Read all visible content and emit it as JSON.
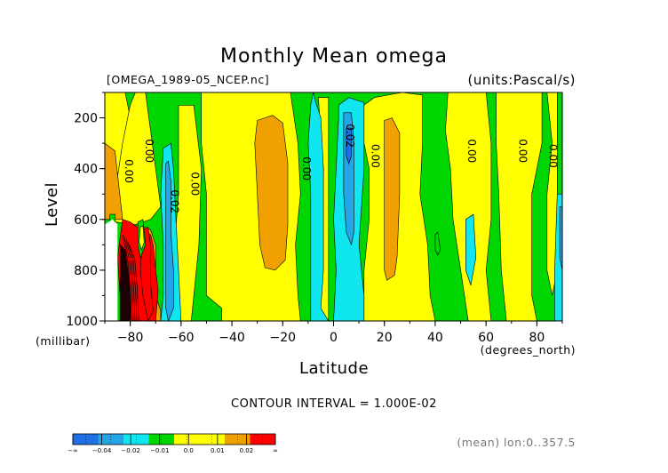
{
  "colors": {
    "band_neg04": "#1f6fe6",
    "band_neg03": "#25a5e6",
    "band_neg02": "#0fe6f0",
    "band_neg01": "#00d600",
    "band_00": "#ffff00",
    "band_01": "#ffff00",
    "band_02": "#f0a000",
    "band_03": "#ff0000",
    "dark_core": "#1a0000"
  },
  "chart_data": {
    "type": "heatmap",
    "title": "Monthly Mean omega",
    "file_label": "[OMEGA_1989-05_NCEP.nc]",
    "units_label": "(units:Pascal/s)",
    "xlabel": "Latitude",
    "x_units_label": "(degrees_north)",
    "ylabel": "Level",
    "y_units_label": "(millibar)",
    "xlim": [
      -90,
      90
    ],
    "ylim": [
      1000,
      100
    ],
    "x_ticks": [
      {
        "value": -80,
        "label": "-80"
      },
      {
        "value": -60,
        "label": "-60"
      },
      {
        "value": -40,
        "label": "-40"
      },
      {
        "value": -20,
        "label": "-20"
      },
      {
        "value": 0,
        "label": "0"
      },
      {
        "value": 20,
        "label": "20"
      },
      {
        "value": 40,
        "label": "40"
      },
      {
        "value": 60,
        "label": "60"
      },
      {
        "value": 80,
        "label": "80"
      }
    ],
    "y_ticks": [
      {
        "value": 200,
        "label": "200"
      },
      {
        "value": 400,
        "label": "400"
      },
      {
        "value": 600,
        "label": "600"
      },
      {
        "value": 800,
        "label": "800"
      },
      {
        "value": 1000,
        "label": "1000"
      }
    ],
    "contour_interval_text": "CONTOUR INTERVAL = 1.000E-02",
    "subtitle_right": "(mean) lon:0..357.5",
    "legend": {
      "labels": [
        "-∞",
        "-0.04",
        "-0.02",
        "-0.01",
        "0.0",
        "0.01",
        "0.02",
        "∞"
      ],
      "band_colors": [
        "#1f6fe6",
        "#25a5e6",
        "#0fe6f0",
        "#00d600",
        "#ffff00",
        "#ffff00",
        "#f0a000",
        "#ff0000"
      ]
    },
    "contour_labels": [
      {
        "text": "0.00",
        "lat": -82,
        "lev": 410
      },
      {
        "text": "0.00",
        "lat": -74,
        "lev": 330
      },
      {
        "text": "0.02",
        "lat": -64,
        "lev": 530
      },
      {
        "text": "0.00",
        "lat": -56,
        "lev": 460
      },
      {
        "text": "0.00",
        "lat": -12,
        "lev": 400
      },
      {
        "text": "0.02",
        "lat": 5,
        "lev": 270
      },
      {
        "text": "0.00",
        "lat": 15,
        "lev": 350
      },
      {
        "text": "0.00",
        "lat": 53,
        "lev": 330
      },
      {
        "text": "0.00",
        "lat": 73,
        "lev": 330
      },
      {
        "text": "0.00",
        "lat": 85,
        "lev": 350
      }
    ],
    "regions": [
      {
        "level": "band_neg01",
        "pts": [
          [
            -90,
            100
          ],
          [
            90,
            100
          ],
          [
            90,
            1000
          ],
          [
            -90,
            1000
          ]
        ]
      },
      {
        "level": "band_00",
        "pts": [
          [
            -90,
            100
          ],
          [
            -82,
            100
          ],
          [
            -80,
            200
          ],
          [
            -81,
            300
          ],
          [
            -82,
            500
          ],
          [
            -83,
            600
          ],
          [
            -90,
            600
          ]
        ]
      },
      {
        "level": "band_00",
        "pts": [
          [
            -78,
            100
          ],
          [
            -74,
            100
          ],
          [
            -72,
            250
          ],
          [
            -70,
            400
          ],
          [
            -68,
            550
          ],
          [
            -72,
            600
          ],
          [
            -78,
            620
          ],
          [
            -86,
            610
          ],
          [
            -86,
            500
          ],
          [
            -83,
            300
          ],
          [
            -80,
            150
          ]
        ]
      },
      {
        "level": "band_00",
        "pts": [
          [
            -61,
            150
          ],
          [
            -55,
            150
          ],
          [
            -52,
            400
          ],
          [
            -53,
            700
          ],
          [
            -56,
            1000
          ],
          [
            -63,
            1000
          ],
          [
            -63,
            750
          ],
          [
            -61,
            500
          ],
          [
            -61,
            300
          ]
        ]
      },
      {
        "level": "band_00",
        "pts": [
          [
            -52,
            100
          ],
          [
            -17,
            100
          ],
          [
            -14,
            300
          ],
          [
            -13,
            500
          ],
          [
            -15,
            700
          ],
          [
            -14,
            900
          ],
          [
            -13,
            1000
          ],
          [
            -44,
            1000
          ],
          [
            -44,
            950
          ],
          [
            -50,
            900
          ],
          [
            -50,
            800
          ],
          [
            -50,
            500
          ],
          [
            -52,
            300
          ]
        ]
      },
      {
        "level": "band_00",
        "pts": [
          [
            -6,
            120
          ],
          [
            -2,
            120
          ],
          [
            -2,
            400
          ],
          [
            -2,
            700
          ],
          [
            -2,
            1000
          ],
          [
            -5,
            1000
          ],
          [
            -5,
            700
          ],
          [
            -4,
            400
          ]
        ]
      },
      {
        "level": "band_00",
        "pts": [
          [
            12,
            150
          ],
          [
            16,
            120
          ],
          [
            27,
            100
          ],
          [
            35,
            110
          ],
          [
            35,
            300
          ],
          [
            34,
            500
          ],
          [
            37,
            700
          ],
          [
            38,
            900
          ],
          [
            40,
            1000
          ],
          [
            12,
            1000
          ],
          [
            12,
            800
          ],
          [
            14,
            600
          ],
          [
            14,
            400
          ],
          [
            12,
            300
          ]
        ]
      },
      {
        "level": "band_00",
        "pts": [
          [
            45,
            100
          ],
          [
            60,
            100
          ],
          [
            62,
            300
          ],
          [
            62,
            600
          ],
          [
            60,
            800
          ],
          [
            62,
            1000
          ],
          [
            53,
            1000
          ],
          [
            50,
            800
          ],
          [
            47,
            600
          ],
          [
            46,
            400
          ],
          [
            44,
            250
          ]
        ]
      },
      {
        "level": "band_00",
        "pts": [
          [
            64,
            100
          ],
          [
            82,
            100
          ],
          [
            82,
            300
          ],
          [
            78,
            500
          ],
          [
            78,
            700
          ],
          [
            78,
            900
          ],
          [
            80,
            1000
          ],
          [
            68,
            1000
          ],
          [
            66,
            800
          ],
          [
            65,
            500
          ],
          [
            64,
            300
          ]
        ]
      },
      {
        "level": "band_00",
        "pts": [
          [
            84,
            100
          ],
          [
            88,
            100
          ],
          [
            88,
            500
          ],
          [
            88,
            800
          ],
          [
            86,
            900
          ],
          [
            84,
            800
          ],
          [
            84,
            500
          ],
          [
            86,
            300
          ]
        ]
      },
      {
        "level": "band_02",
        "pts": [
          [
            -90,
            300
          ],
          [
            -86,
            330
          ],
          [
            -83,
            600
          ],
          [
            -90,
            600
          ]
        ]
      },
      {
        "level": "band_02",
        "pts": [
          [
            -30,
            210
          ],
          [
            -24,
            190
          ],
          [
            -20,
            220
          ],
          [
            -18,
            380
          ],
          [
            -18,
            620
          ],
          [
            -19,
            760
          ],
          [
            -23,
            800
          ],
          [
            -27,
            790
          ],
          [
            -29,
            700
          ],
          [
            -30,
            500
          ],
          [
            -31,
            300
          ]
        ]
      },
      {
        "level": "band_02",
        "pts": [
          [
            20,
            210
          ],
          [
            23,
            200
          ],
          [
            26,
            260
          ],
          [
            26,
            500
          ],
          [
            25,
            750
          ],
          [
            24,
            820
          ],
          [
            21,
            840
          ],
          [
            20,
            800
          ],
          [
            20,
            600
          ],
          [
            20,
            400
          ]
        ]
      },
      {
        "level": "band_02",
        "pts": [
          [
            -77,
            620
          ],
          [
            -72,
            640
          ],
          [
            -70,
            700
          ],
          [
            -70,
            900
          ],
          [
            -68,
            960
          ],
          [
            -68,
            1000
          ],
          [
            -80,
            1000
          ],
          [
            -82,
            900
          ],
          [
            -82,
            750
          ],
          [
            -80,
            650
          ]
        ]
      },
      {
        "level": "band_neg02",
        "pts": [
          [
            -67,
            320
          ],
          [
            -64,
            300
          ],
          [
            -63,
            400
          ],
          [
            -62,
            600
          ],
          [
            -61,
            800
          ],
          [
            -60,
            1000
          ],
          [
            -68,
            1000
          ],
          [
            -67,
            900
          ],
          [
            -67,
            700
          ],
          [
            -68,
            500
          ]
        ]
      },
      {
        "level": "band_neg02",
        "pts": [
          [
            -8,
            100
          ],
          [
            -7,
            140
          ],
          [
            -5,
            200
          ],
          [
            -4,
            400
          ],
          [
            -4,
            600
          ],
          [
            -4,
            800
          ],
          [
            -5,
            950
          ],
          [
            -2,
            1000
          ],
          [
            -9,
            1000
          ],
          [
            -9,
            700
          ],
          [
            -9,
            500
          ],
          [
            -10,
            300
          ],
          [
            -9,
            150
          ]
        ]
      },
      {
        "level": "band_neg02",
        "pts": [
          [
            2,
            150
          ],
          [
            6,
            120
          ],
          [
            12,
            140
          ],
          [
            12,
            400
          ],
          [
            10,
            700
          ],
          [
            12,
            900
          ],
          [
            12,
            1000
          ],
          [
            0,
            1000
          ],
          [
            1,
            800
          ],
          [
            0,
            600
          ],
          [
            1,
            400
          ],
          [
            2,
            200
          ]
        ]
      },
      {
        "level": "band_neg02",
        "pts": [
          [
            52,
            600
          ],
          [
            55,
            580
          ],
          [
            56,
            750
          ],
          [
            54,
            860
          ],
          [
            52,
            800
          ]
        ]
      },
      {
        "level": "band_neg02",
        "pts": [
          [
            88,
            500
          ],
          [
            90,
            500
          ],
          [
            90,
            1000
          ],
          [
            87,
            1000
          ],
          [
            87,
            800
          ]
        ]
      },
      {
        "level": "band_neg03",
        "pts": [
          [
            -66,
            380
          ],
          [
            -65,
            370
          ],
          [
            -64,
            450
          ],
          [
            -64,
            650
          ],
          [
            -63,
            800
          ],
          [
            -63,
            950
          ],
          [
            -65,
            1000
          ],
          [
            -66,
            950
          ],
          [
            -66,
            750
          ],
          [
            -66,
            550
          ]
        ]
      },
      {
        "level": "band_neg03",
        "pts": [
          [
            4,
            180
          ],
          [
            7,
            180
          ],
          [
            8,
            300
          ],
          [
            8,
            500
          ],
          [
            8,
            650
          ],
          [
            7,
            700
          ],
          [
            5,
            650
          ],
          [
            4,
            500
          ],
          [
            4,
            300
          ]
        ]
      },
      {
        "level": "band_neg04",
        "pts": [
          [
            5,
            240
          ],
          [
            7,
            240
          ],
          [
            7,
            350
          ],
          [
            6,
            380
          ],
          [
            5,
            350
          ]
        ]
      },
      {
        "level": "band_neg03",
        "pts": [
          [
            89,
            550
          ],
          [
            90,
            550
          ],
          [
            90,
            800
          ],
          [
            89,
            750
          ]
        ]
      },
      {
        "level": "band_03",
        "pts": [
          [
            -83,
            600
          ],
          [
            -80,
            610
          ],
          [
            -76,
            640
          ],
          [
            -72,
            660
          ],
          [
            -71,
            700
          ],
          [
            -70,
            800
          ],
          [
            -69,
            880
          ],
          [
            -70,
            1000
          ],
          [
            -84,
            1000
          ],
          [
            -84,
            900
          ],
          [
            -85,
            750
          ]
        ]
      },
      {
        "level": "dark_core",
        "pts": [
          [
            -84,
            700
          ],
          [
            -82,
            720
          ],
          [
            -81,
            800
          ],
          [
            -80,
            880
          ],
          [
            -80,
            1000
          ],
          [
            -84,
            1000
          ],
          [
            -84,
            900
          ]
        ]
      },
      {
        "level": "band_03",
        "pts": [
          [
            -75,
            640
          ],
          [
            -73,
            630
          ],
          [
            -72,
            700
          ],
          [
            -72,
            850
          ],
          [
            -71,
            960
          ],
          [
            -73,
            1000
          ],
          [
            -75,
            900
          ],
          [
            -76,
            800
          ]
        ]
      },
      {
        "level": "band_neg01",
        "pts": [
          [
            -77,
            610
          ],
          [
            -75,
            600
          ],
          [
            -74,
            700
          ],
          [
            -76,
            750
          ],
          [
            -77,
            700
          ]
        ]
      },
      {
        "level": "band_neg01",
        "pts": [
          [
            -88,
            580
          ],
          [
            -86,
            580
          ],
          [
            -86,
            620
          ],
          [
            -88,
            620
          ]
        ]
      },
      {
        "level": "band_00",
        "pts": [
          [
            -76,
            630
          ],
          [
            -75,
            625
          ],
          [
            -74.5,
            690
          ],
          [
            -75.5,
            720
          ],
          [
            -76.5,
            690
          ]
        ]
      },
      {
        "level": "band_neg01",
        "pts": [
          [
            40,
            660
          ],
          [
            41,
            650
          ],
          [
            42,
            720
          ],
          [
            41,
            740
          ],
          [
            40,
            720
          ]
        ]
      }
    ],
    "white_mask": [
      [
        -90,
        620
      ],
      [
        -87,
        600
      ],
      [
        -85,
        620
      ],
      [
        -85,
        1000
      ],
      [
        -90,
        1000
      ]
    ]
  }
}
